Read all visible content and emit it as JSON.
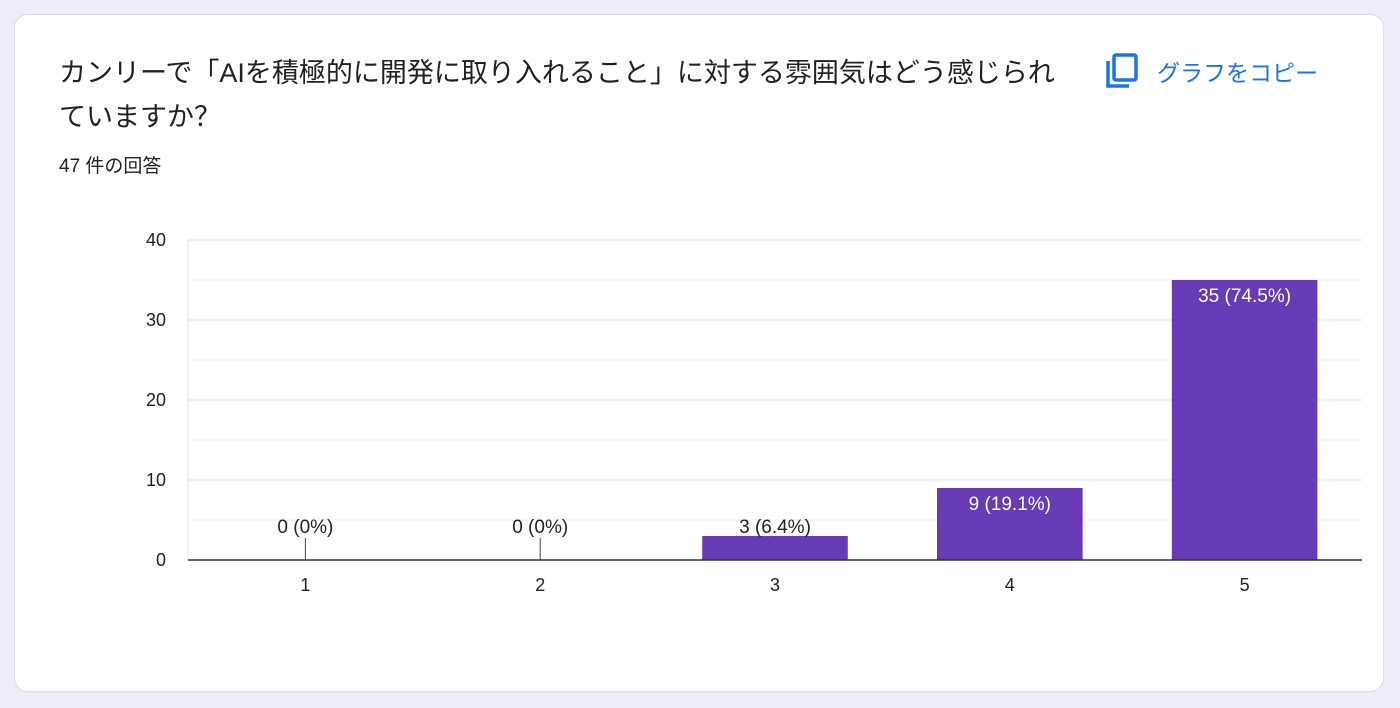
{
  "question": {
    "title": "カンリーで「AIを積極的に開発に取り入れること」に対する雰囲気はどう感じられていますか？",
    "response_count": "47 件の回答"
  },
  "toolbar": {
    "copy_label": "グラフをコピー",
    "copy_icon": "copy-icon"
  },
  "colors": {
    "bar": "#673ab7",
    "accent": "#1a73e8"
  },
  "chart_data": {
    "type": "bar",
    "categories": [
      "1",
      "2",
      "3",
      "4",
      "5"
    ],
    "values": [
      0,
      0,
      3,
      9,
      35
    ],
    "data_labels": [
      "0 (0%)",
      "0 (0%)",
      "3 (6.4%)",
      "9 (19.1%)",
      "35 (74.5%)"
    ],
    "title": "",
    "xlabel": "",
    "ylabel": "",
    "ylim": [
      0,
      40
    ],
    "yticks": [
      0,
      10,
      20,
      30,
      40
    ],
    "grid": true,
    "legend": "none"
  }
}
